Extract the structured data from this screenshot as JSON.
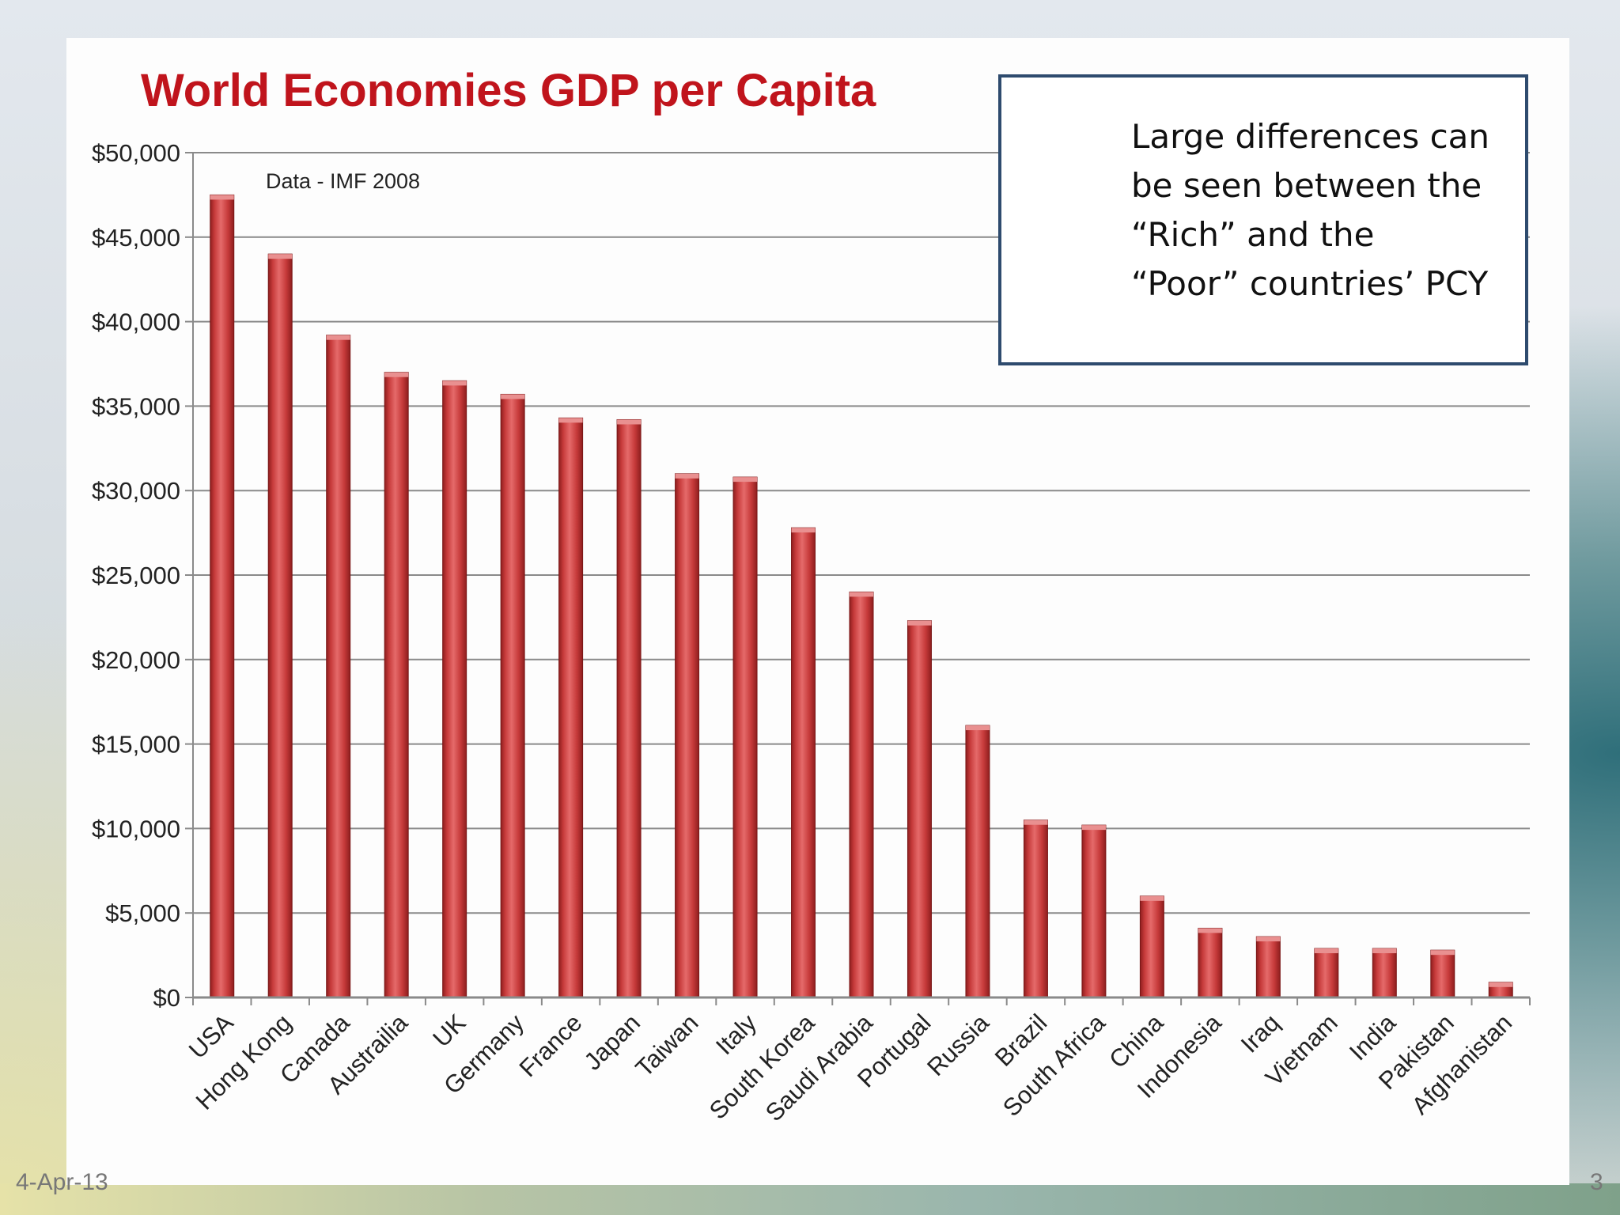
{
  "slide": {
    "date": "4-Apr-13",
    "page_number": "3"
  },
  "callout": {
    "lines": [
      "Large differences can",
      "be seen between the",
      "“Rich” and the",
      "“Poor” countries’ PCY"
    ]
  },
  "colors": {
    "title": "#c0141c",
    "bar": "#c63a3a",
    "bar_dark": "#8e1e1e",
    "bar_light": "#e56a6a",
    "callout_border": "#2e4b6e"
  },
  "chart_data": {
    "type": "bar",
    "title": "World Economies GDP per Capita",
    "annotation": "Data - IMF 2008",
    "xlabel": "",
    "ylabel": "",
    "ylim": [
      0,
      50000
    ],
    "yticks": [
      0,
      5000,
      10000,
      15000,
      20000,
      25000,
      30000,
      35000,
      40000,
      45000,
      50000
    ],
    "ytick_labels": [
      "$0",
      "$5,000",
      "$10,000",
      "$15,000",
      "$20,000",
      "$25,000",
      "$30,000",
      "$35,000",
      "$40,000",
      "$45,000",
      "$50,000"
    ],
    "grid": true,
    "legend": false,
    "categories": [
      "USA",
      "Hong Kong",
      "Canada",
      "Austrailia",
      "UK",
      "Germany",
      "France",
      "Japan",
      "Taiwan",
      "Italy",
      "South Korea",
      "Saudi Arabia",
      "Portugal",
      "Russia",
      "Brazil",
      "South Africa",
      "China",
      "Indonesia",
      "Iraq",
      "Vietnam",
      "India",
      "Pakistan",
      "Afghanistan"
    ],
    "values": [
      47500,
      44000,
      39200,
      37000,
      36500,
      35700,
      34300,
      34200,
      31000,
      30800,
      27800,
      24000,
      22300,
      16100,
      10500,
      10200,
      6000,
      4100,
      3600,
      2900,
      2900,
      2800,
      900
    ]
  }
}
